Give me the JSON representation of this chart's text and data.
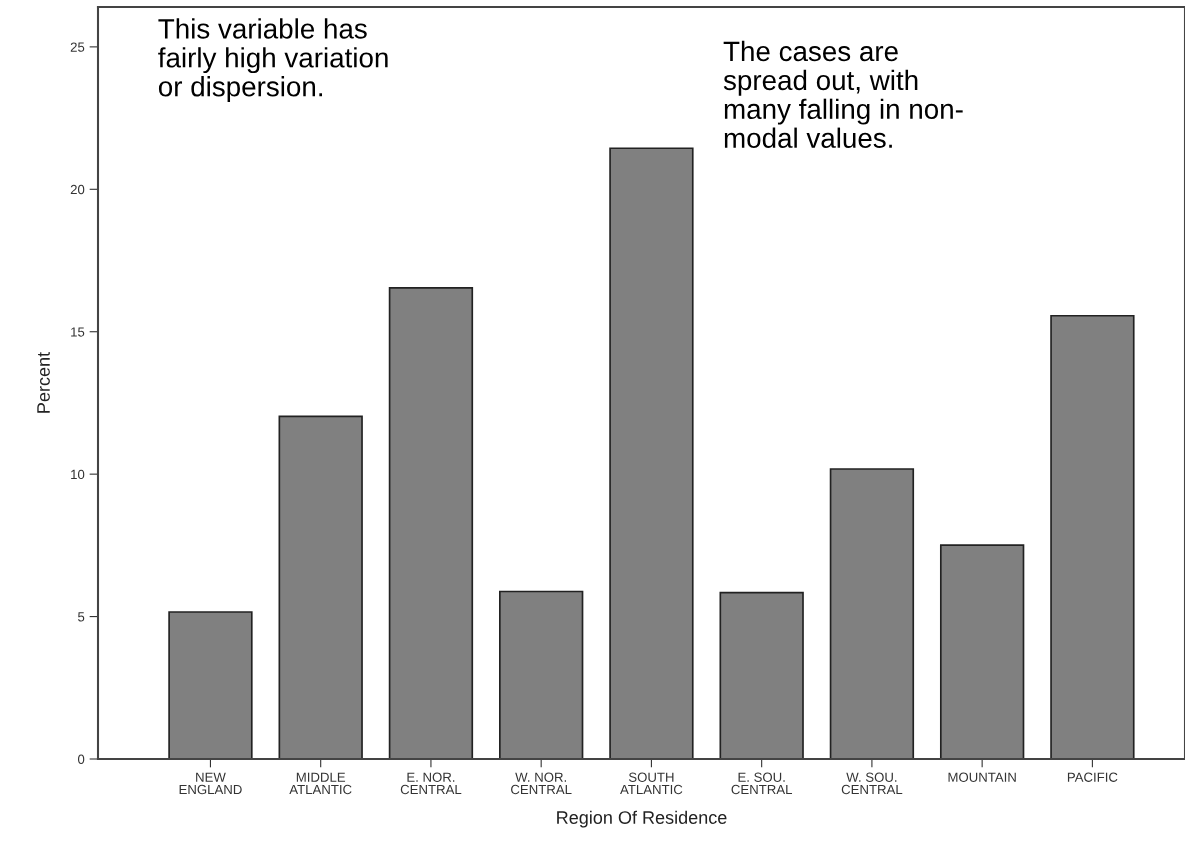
{
  "chart_data": {
    "type": "bar",
    "xlabel": "Region Of Residence",
    "ylabel": "Percent",
    "categories": [
      "NEW\nENGLAND",
      "MIDDLE\nATLANTIC",
      "E. NOR.\nCENTRAL",
      "W. NOR.\nCENTRAL",
      "SOUTH\nATLANTIC",
      "E. SOU.\nCENTRAL",
      "W. SOU.\nCENTRAL",
      "MOUNTAIN",
      "PACIFIC"
    ],
    "values": [
      5.16,
      12.03,
      16.54,
      5.88,
      21.44,
      5.84,
      10.18,
      7.51,
      15.56
    ],
    "color": "#808080",
    "ylim": [
      0,
      26.4
    ],
    "yticks": [
      0,
      5,
      10,
      15,
      20,
      25
    ],
    "grid": false,
    "legend": false,
    "annotations": [
      "This variable has\nfairly high variation\nor dispersion.",
      "The cases are\nspread out, with\nmany falling in non-\nmodal values."
    ]
  }
}
